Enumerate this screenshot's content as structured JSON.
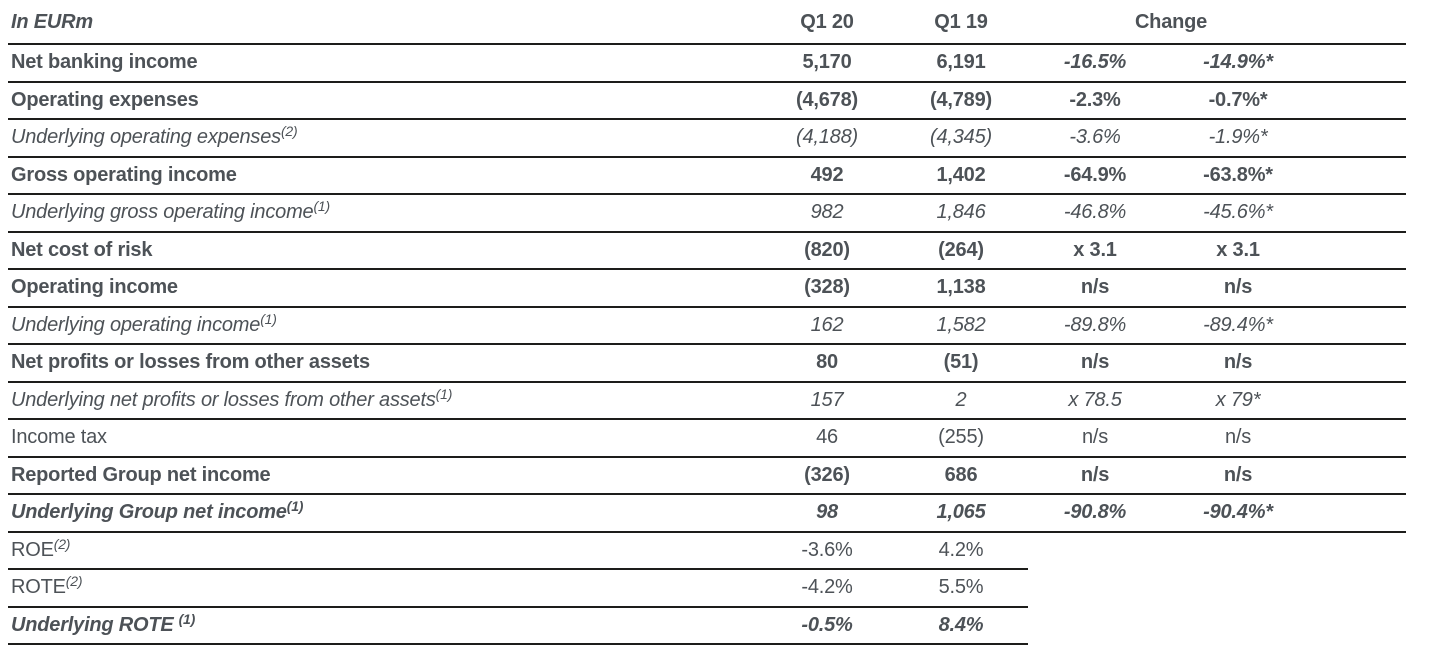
{
  "colors": {
    "text": "#4d5257",
    "border": "#1d1d1b"
  },
  "header": {
    "unit": "In EURm",
    "col1": "Q1 20",
    "col2": "Q1 19",
    "change": "Change"
  },
  "rows": [
    {
      "label": "Net banking income",
      "sup": "",
      "q1_20": "5,170",
      "q1_19": "6,191",
      "chg_1": "-16.5%",
      "chg_2": "-14.9%*",
      "style": "bold",
      "chg_style": "bold-italic",
      "short_border": false
    },
    {
      "label": "Operating expenses",
      "sup": "",
      "q1_20": "(4,678)",
      "q1_19": "(4,789)",
      "chg_1": "-2.3%",
      "chg_2": "-0.7%*",
      "style": "bold",
      "chg_style": "bold",
      "short_border": false
    },
    {
      "label": "Underlying operating expenses",
      "sup": "(2)",
      "q1_20": "(4,188)",
      "q1_19": "(4,345)",
      "chg_1": "-3.6%",
      "chg_2": "-1.9%*",
      "style": "italic",
      "chg_style": "italic",
      "short_border": false
    },
    {
      "label": "Gross operating income",
      "sup": "",
      "q1_20": "492",
      "q1_19": "1,402",
      "chg_1": "-64.9%",
      "chg_2": "-63.8%*",
      "style": "bold",
      "chg_style": "bold",
      "short_border": false
    },
    {
      "label": "Underlying gross operating income",
      "sup": "(1)",
      "q1_20": "982",
      "q1_19": "1,846",
      "chg_1": "-46.8%",
      "chg_2": "-45.6%*",
      "style": "italic",
      "chg_style": "italic",
      "short_border": false
    },
    {
      "label": "Net cost of risk",
      "sup": "",
      "q1_20": "(820)",
      "q1_19": "(264)",
      "chg_1": "x 3.1",
      "chg_2": "x 3.1",
      "style": "bold",
      "chg_style": "bold",
      "short_border": false
    },
    {
      "label": "Operating income",
      "sup": "",
      "q1_20": "(328)",
      "q1_19": "1,138",
      "chg_1": "n/s",
      "chg_2": "n/s",
      "style": "bold",
      "chg_style": "bold",
      "short_border": false
    },
    {
      "label": "Underlying operating income",
      "sup": "(1)",
      "q1_20": "162",
      "q1_19": "1,582",
      "chg_1": "-89.8%",
      "chg_2": "-89.4%*",
      "style": "italic",
      "chg_style": "italic",
      "short_border": false
    },
    {
      "label": "Net profits or losses from other assets",
      "sup": "",
      "q1_20": "80",
      "q1_19": "(51)",
      "chg_1": "n/s",
      "chg_2": "n/s",
      "style": "bold",
      "chg_style": "bold",
      "short_border": false
    },
    {
      "label": "Underlying net profits or losses from other assets",
      "sup": "(1)",
      "q1_20": "157",
      "q1_19": "2",
      "chg_1": "x 78.5",
      "chg_2": "x 79*",
      "style": "italic",
      "chg_style": "italic",
      "short_border": false
    },
    {
      "label": "Income tax",
      "sup": "",
      "q1_20": "46",
      "q1_19": "(255)",
      "chg_1": "n/s",
      "chg_2": "n/s",
      "style": "regular",
      "chg_style": "regular",
      "short_border": false
    },
    {
      "label": "Reported Group net income",
      "sup": "",
      "q1_20": "(326)",
      "q1_19": "686",
      "chg_1": "n/s",
      "chg_2": "n/s",
      "style": "bold",
      "chg_style": "bold",
      "short_border": false
    },
    {
      "label": "Underlying Group net income",
      "sup": "(1)",
      "q1_20": "98",
      "q1_19": "1,065",
      "chg_1": "-90.8%",
      "chg_2": "-90.4%*",
      "style": "bold-italic",
      "chg_style": "bold-italic",
      "short_border": false
    },
    {
      "label": "ROE",
      "sup": "(2)",
      "q1_20": "-3.6%",
      "q1_19": "4.2%",
      "chg_1": "",
      "chg_2": "",
      "style": "regular",
      "chg_style": "regular",
      "short_border": true
    },
    {
      "label": "ROTE",
      "sup": "(2)",
      "q1_20": "-4.2%",
      "q1_19": "5.5%",
      "chg_1": "",
      "chg_2": "",
      "style": "regular",
      "chg_style": "regular",
      "short_border": true
    },
    {
      "label": "Underlying ROTE",
      "sup": "(1)",
      "sup_space": true,
      "q1_20": "-0.5%",
      "q1_19": "8.4%",
      "chg_1": "",
      "chg_2": "",
      "style": "bold-italic",
      "chg_style": "bold-italic",
      "short_border": true
    }
  ]
}
